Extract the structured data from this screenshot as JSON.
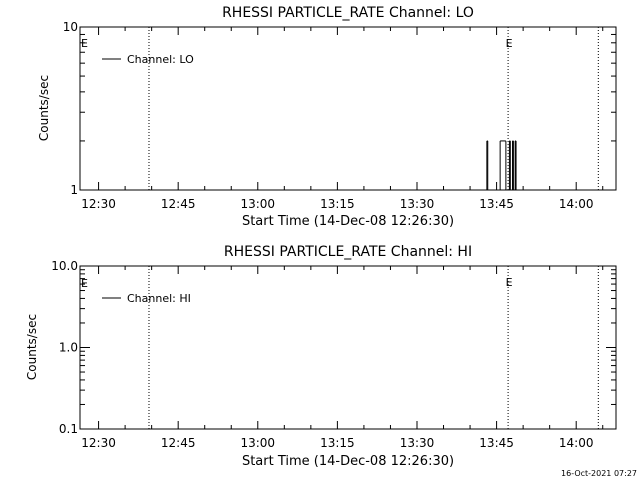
{
  "chart_data": [
    {
      "type": "line",
      "title": "RHESSI PARTICLE_RATE Channel: LO",
      "xlabel": "Start Time (14-Dec-08 12:26:30)",
      "ylabel": "Counts/sec",
      "yscale": "log",
      "ylim": [
        1,
        10
      ],
      "yticks": [
        {
          "v": 1,
          "label": "1"
        },
        {
          "v": 10,
          "label": "10"
        }
      ],
      "xlim": [
        "12:26:30",
        "14:07:30"
      ],
      "xticks": [
        "12:30",
        "12:45",
        "13:00",
        "13:15",
        "13:30",
        "13:45",
        "14:00"
      ],
      "legend": "top-left",
      "series": [
        {
          "name": "Channel: LO",
          "points": [
            [
              "13:43:10",
              1
            ],
            [
              "13:43:10",
              2
            ],
            [
              "13:43:20",
              2
            ],
            [
              "13:43:20",
              1
            ],
            [
              "13:45:40",
              1
            ],
            [
              "13:45:40",
              2
            ],
            [
              "13:46:45",
              2
            ],
            [
              "13:46:45",
              1
            ],
            [
              "13:47:25",
              1
            ],
            [
              "13:47:25",
              2
            ],
            [
              "13:47:35",
              2
            ],
            [
              "13:47:35",
              1
            ],
            [
              "13:48:00",
              1
            ],
            [
              "13:48:00",
              2
            ],
            [
              "13:48:10",
              2
            ],
            [
              "13:48:10",
              1
            ],
            [
              "13:48:30",
              1
            ],
            [
              "13:48:30",
              2
            ],
            [
              "13:48:40",
              2
            ],
            [
              "13:48:40",
              1
            ]
          ]
        }
      ],
      "vlines": [
        {
          "x": "12:39:30",
          "style": "dotted",
          "label": ""
        },
        {
          "x": "13:47:10",
          "style": "dotted",
          "label": "E"
        },
        {
          "x": "14:04:10",
          "style": "dotted",
          "label": ""
        }
      ],
      "start_marker": "E"
    },
    {
      "type": "line",
      "title": "RHESSI PARTICLE_RATE Channel: HI",
      "xlabel": "Start Time (14-Dec-08 12:26:30)",
      "ylabel": "Counts/sec",
      "yscale": "log",
      "ylim": [
        0.1,
        10
      ],
      "yticks": [
        {
          "v": 0.1,
          "label": "0.1"
        },
        {
          "v": 1,
          "label": "1.0"
        },
        {
          "v": 10,
          "label": "10.0"
        }
      ],
      "xlim": [
        "12:26:30",
        "14:07:30"
      ],
      "xticks": [
        "12:30",
        "12:45",
        "13:00",
        "13:15",
        "13:30",
        "13:45",
        "14:00"
      ],
      "legend": "top-left",
      "series": [
        {
          "name": "Channel: HI",
          "points": []
        }
      ],
      "vlines": [
        {
          "x": "12:39:30",
          "style": "dotted",
          "label": ""
        },
        {
          "x": "13:47:10",
          "style": "dotted",
          "label": "E"
        },
        {
          "x": "14:04:10",
          "style": "dotted",
          "label": ""
        }
      ],
      "start_marker": "E"
    }
  ],
  "footer": {
    "timestamp": "16-Oct-2021 07:27"
  }
}
